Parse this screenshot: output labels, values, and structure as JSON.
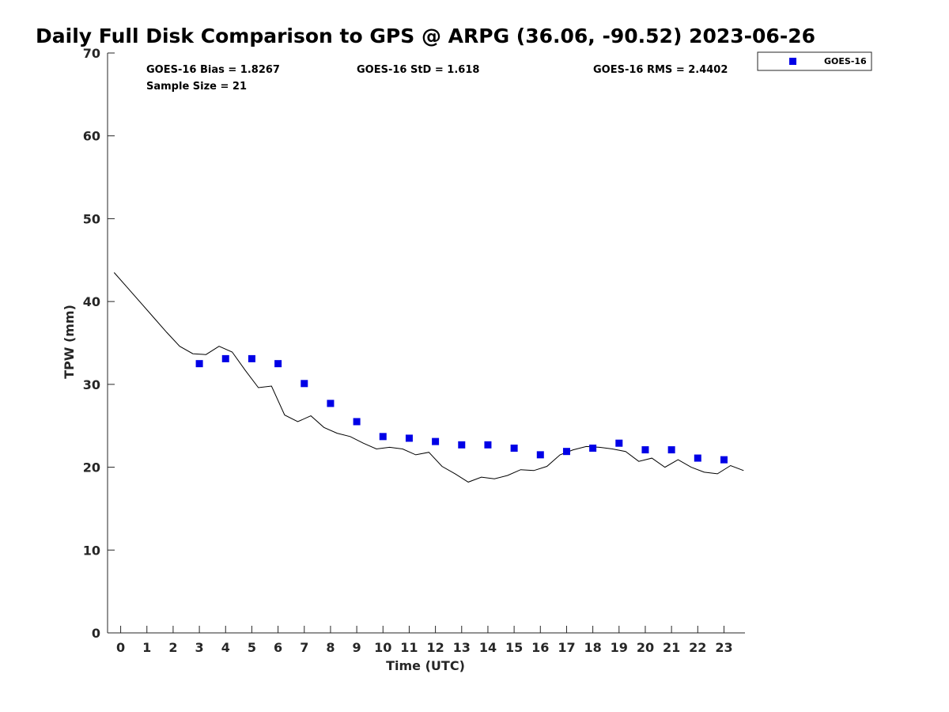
{
  "chart_data": {
    "type": "scatter",
    "title": "Daily Full Disk Comparison to GPS @ ARPG (36.06, -90.52) 2023-06-26",
    "xlabel": "Time (UTC)",
    "ylabel": "TPW (mm)",
    "xlim": [
      -0.5,
      23.8
    ],
    "ylim": [
      0,
      70
    ],
    "x_ticks": [
      "0",
      "1",
      "2",
      "3",
      "4",
      "5",
      "6",
      "7",
      "8",
      "9",
      "10",
      "11",
      "12",
      "13",
      "14",
      "15",
      "16",
      "17",
      "18",
      "19",
      "20",
      "21",
      "22",
      "23"
    ],
    "y_ticks": [
      "0",
      "10",
      "20",
      "30",
      "40",
      "50",
      "60",
      "70"
    ],
    "grid": false,
    "legend_position": "top-right (outside axes)",
    "stats": {
      "bias": "GOES-16 Bias = 1.8267",
      "std": "GOES-16 StD = 1.618",
      "rms": "GOES-16 RMS = 2.4402",
      "sample_size": "Sample Size = 21"
    },
    "series": [
      {
        "name": "GOES-16",
        "marker": "square",
        "color": "#0000e6",
        "x": [
          3,
          4,
          5,
          6,
          7,
          8,
          9,
          10,
          11,
          12,
          13,
          14,
          15,
          16,
          17,
          18,
          19,
          20,
          21,
          22,
          23
        ],
        "y": [
          32.5,
          33.1,
          33.1,
          32.5,
          30.1,
          27.7,
          25.5,
          23.7,
          23.5,
          23.1,
          22.7,
          22.7,
          22.3,
          21.5,
          21.9,
          22.3,
          22.9,
          22.1,
          22.1,
          21.1,
          20.9
        ]
      },
      {
        "line": true,
        "color": "#000000",
        "x": [
          -0.25,
          0.25,
          0.75,
          1.25,
          1.75,
          2.25,
          2.75,
          3.25,
          3.75,
          4.25,
          4.75,
          5.25,
          5.75,
          6.25,
          6.75,
          7.25,
          7.75,
          8.25,
          8.75,
          9.25,
          9.75,
          10.25,
          10.75,
          11.25,
          11.75,
          12.25,
          12.75,
          13.25,
          13.75,
          14.25,
          14.75,
          15.25,
          15.75,
          16.25,
          16.75,
          17.25,
          17.75,
          18.25,
          18.75,
          19.25,
          19.75,
          20.25,
          20.75,
          21.25,
          21.75,
          22.25,
          22.75,
          23.25,
          23.75
        ],
        "y": [
          43.5,
          41.7,
          39.9,
          38.1,
          36.3,
          34.6,
          33.7,
          33.6,
          34.6,
          33.9,
          31.7,
          29.6,
          29.8,
          26.3,
          25.5,
          26.2,
          24.8,
          24.1,
          23.7,
          22.9,
          22.2,
          22.4,
          22.2,
          21.5,
          21.8,
          20.1,
          19.2,
          18.2,
          18.8,
          18.6,
          19.0,
          19.7,
          19.6,
          20.1,
          21.5,
          22.1,
          22.5,
          22.4,
          22.2,
          21.9,
          20.7,
          21.1,
          20.0,
          20.9,
          20.0,
          19.4,
          19.2,
          20.2,
          19.6
        ]
      }
    ]
  }
}
